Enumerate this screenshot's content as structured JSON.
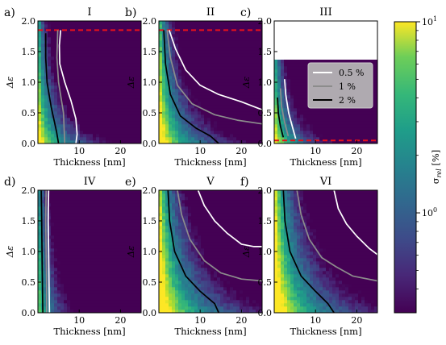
{
  "chart_data": [
    {
      "type": "heatmap",
      "panel_label": "a)",
      "title": "I",
      "xlabel": "Thickness [nm]",
      "ylabel": "Δε",
      "xlim": [
        0,
        25
      ],
      "ylim": [
        0,
        2.0
      ],
      "xticks": [
        10,
        20
      ],
      "yticks": [
        0.0,
        0.5,
        1.0,
        1.5,
        2.0
      ],
      "masked_above": null,
      "reference_lines": [
        {
          "style": "dashed",
          "color": "#e8101a",
          "y": 1.85
        }
      ],
      "field": {
        "a": 0.9,
        "slope": 0.55
      },
      "series": [
        {
          "name": "0.5 %",
          "color": "#ffffff",
          "points": [
            [
              5.5,
              1.85
            ],
            [
              5.2,
              1.6
            ],
            [
              5.3,
              1.3
            ],
            [
              6.5,
              1.0
            ],
            [
              8.0,
              0.7
            ],
            [
              9.2,
              0.4
            ],
            [
              9.5,
              0.15
            ],
            [
              9.2,
              0.0
            ]
          ]
        },
        {
          "name": "1 %",
          "color": "#8c8c8c",
          "points": [
            [
              4.8,
              1.85
            ],
            [
              4.6,
              1.4
            ],
            [
              5.0,
              1.0
            ],
            [
              6.2,
              0.5
            ],
            [
              6.5,
              0.0
            ]
          ]
        },
        {
          "name": "2 %",
          "color": "#000000",
          "points": [
            [
              1.9,
              1.8
            ],
            [
              1.9,
              1.4
            ],
            [
              2.2,
              1.0
            ],
            [
              3.2,
              0.6
            ],
            [
              4.5,
              0.2
            ],
            [
              5.0,
              0.0
            ]
          ]
        }
      ]
    },
    {
      "type": "heatmap",
      "panel_label": "b)",
      "title": "II",
      "xlabel": "Thickness [nm]",
      "ylabel": "Δε",
      "xlim": [
        0,
        25
      ],
      "ylim": [
        0,
        2.0
      ],
      "xticks": [
        10,
        20
      ],
      "yticks": [
        0.0,
        0.5,
        1.0,
        1.5,
        2.0
      ],
      "masked_above": null,
      "reference_lines": [
        {
          "style": "dashed",
          "color": "#e8101a",
          "y": 1.85
        }
      ],
      "field": {
        "a": 1.0,
        "slope": 0.45
      },
      "series": [
        {
          "name": "0.5 %",
          "color": "#ffffff",
          "points": [
            [
              2.5,
              1.85
            ],
            [
              4.0,
              1.55
            ],
            [
              6.5,
              1.2
            ],
            [
              10.0,
              0.95
            ],
            [
              14.5,
              0.8
            ],
            [
              20.0,
              0.68
            ],
            [
              25.0,
              0.55
            ]
          ]
        },
        {
          "name": "1 %",
          "color": "#8c8c8c",
          "points": [
            [
              2.0,
              1.85
            ],
            [
              2.8,
              1.4
            ],
            [
              4.5,
              0.95
            ],
            [
              8.0,
              0.65
            ],
            [
              13.5,
              0.47
            ],
            [
              19.0,
              0.38
            ],
            [
              25.0,
              0.32
            ]
          ]
        },
        {
          "name": "2 %",
          "color": "#000000",
          "points": [
            [
              1.2,
              1.85
            ],
            [
              1.6,
              1.3
            ],
            [
              2.8,
              0.8
            ],
            [
              5.2,
              0.45
            ],
            [
              9.0,
              0.25
            ],
            [
              12.5,
              0.12
            ],
            [
              14.5,
              0.0
            ]
          ]
        }
      ]
    },
    {
      "type": "heatmap",
      "panel_label": "c)",
      "title": "III",
      "xlabel": "Thickness [nm]",
      "ylabel": "Δε",
      "xlim": [
        0,
        25
      ],
      "ylim": [
        0,
        2.0
      ],
      "xticks": [
        10,
        20
      ],
      "yticks": [
        0.0,
        0.5,
        1.0,
        1.5,
        2.0
      ],
      "masked_above": 1.38,
      "reference_lines": [
        {
          "style": "dashed",
          "color": "#e8101a",
          "y": 0.05
        }
      ],
      "field": {
        "a": 0.8,
        "slope": 0.6
      },
      "legend": {
        "location": "upper-right",
        "entries": [
          "0.5 %",
          "1 %",
          "2 %"
        ]
      },
      "series": [
        {
          "name": "0.5 %",
          "color": "#ffffff",
          "points": [
            [
              2.5,
              1.05
            ],
            [
              2.8,
              0.8
            ],
            [
              3.5,
              0.5
            ],
            [
              4.5,
              0.25
            ],
            [
              5.2,
              0.08
            ]
          ]
        },
        {
          "name": "1 %",
          "color": "#8c8c8c",
          "points": [
            [
              1.5,
              0.9
            ],
            [
              1.8,
              0.6
            ],
            [
              2.5,
              0.35
            ],
            [
              3.4,
              0.12
            ]
          ]
        },
        {
          "name": "2 %",
          "color": "#000000",
          "points": [
            [
              0.8,
              0.75
            ],
            [
              1.0,
              0.5
            ],
            [
              1.5,
              0.28
            ],
            [
              2.2,
              0.1
            ]
          ]
        }
      ]
    },
    {
      "type": "heatmap",
      "panel_label": "d)",
      "title": "IV",
      "xlabel": "Thickness [nm]",
      "ylabel": "Δε",
      "xlim": [
        0,
        25
      ],
      "ylim": [
        0,
        2.0
      ],
      "xticks": [
        10,
        20
      ],
      "yticks": [
        0.0,
        0.5,
        1.0,
        1.5,
        2.0
      ],
      "masked_above": null,
      "reference_lines": [],
      "field": {
        "a": 0.5,
        "slope": 0.2
      },
      "series": [
        {
          "name": "0.5 %",
          "color": "#ffffff",
          "points": [
            [
              2.6,
              2.0
            ],
            [
              2.5,
              1.5
            ],
            [
              2.6,
              1.0
            ],
            [
              2.7,
              0.5
            ],
            [
              2.8,
              0.0
            ]
          ]
        },
        {
          "name": "1 %",
          "color": "#8c8c8c",
          "points": [
            [
              2.0,
              2.0
            ],
            [
              1.9,
              1.5
            ],
            [
              2.0,
              1.0
            ],
            [
              2.1,
              0.5
            ],
            [
              2.1,
              0.0
            ]
          ]
        },
        {
          "name": "2 %",
          "color": "#000000",
          "points": [
            [
              0.8,
              2.0
            ],
            [
              0.9,
              1.6
            ],
            [
              1.0,
              1.0
            ],
            [
              1.1,
              0.5
            ],
            [
              1.2,
              0.0
            ]
          ]
        }
      ]
    },
    {
      "type": "heatmap",
      "panel_label": "e)",
      "title": "V",
      "xlabel": "Thickness [nm]",
      "ylabel": "Δε",
      "xlim": [
        0,
        25
      ],
      "ylim": [
        0,
        2.0
      ],
      "xticks": [
        10,
        20
      ],
      "yticks": [
        0.0,
        0.5,
        1.0,
        1.5,
        2.0
      ],
      "masked_above": null,
      "reference_lines": [],
      "field": {
        "a": 1.15,
        "slope": 0.35
      },
      "series": [
        {
          "name": "0.5 %",
          "color": "#ffffff",
          "points": [
            [
              9.5,
              2.0
            ],
            [
              11.0,
              1.75
            ],
            [
              13.5,
              1.5
            ],
            [
              16.5,
              1.3
            ],
            [
              20.0,
              1.12
            ],
            [
              23.0,
              1.08
            ],
            [
              25.0,
              1.08
            ]
          ]
        },
        {
          "name": "1 %",
          "color": "#8c8c8c",
          "points": [
            [
              4.5,
              2.0
            ],
            [
              5.5,
              1.6
            ],
            [
              7.5,
              1.2
            ],
            [
              11.0,
              0.85
            ],
            [
              15.0,
              0.65
            ],
            [
              20.0,
              0.55
            ],
            [
              25.0,
              0.52
            ]
          ]
        },
        {
          "name": "2 %",
          "color": "#000000",
          "points": [
            [
              2.2,
              2.0
            ],
            [
              2.6,
              1.5
            ],
            [
              3.8,
              1.0
            ],
            [
              6.5,
              0.6
            ],
            [
              10.0,
              0.35
            ],
            [
              13.5,
              0.15
            ],
            [
              14.5,
              0.0
            ]
          ]
        }
      ]
    },
    {
      "type": "heatmap",
      "panel_label": "f)",
      "title": "VI",
      "xlabel": "Thickness [nm]",
      "ylabel": "Δε",
      "xlim": [
        0,
        25
      ],
      "ylim": [
        0,
        2.0
      ],
      "xticks": [
        10,
        20
      ],
      "yticks": [
        0.0,
        0.5,
        1.0,
        1.5,
        2.0
      ],
      "masked_above": null,
      "reference_lines": [],
      "field": {
        "a": 1.15,
        "slope": 0.32
      },
      "series": [
        {
          "name": "0.5 %",
          "color": "#ffffff",
          "points": [
            [
              14.5,
              2.0
            ],
            [
              15.5,
              1.7
            ],
            [
              17.5,
              1.45
            ],
            [
              20.0,
              1.25
            ],
            [
              23.0,
              1.05
            ],
            [
              25.0,
              0.95
            ]
          ]
        },
        {
          "name": "1 %",
          "color": "#8c8c8c",
          "points": [
            [
              5.5,
              2.0
            ],
            [
              6.5,
              1.6
            ],
            [
              8.5,
              1.2
            ],
            [
              11.5,
              0.9
            ],
            [
              15.0,
              0.75
            ],
            [
              19.0,
              0.6
            ],
            [
              25.0,
              0.52
            ]
          ]
        },
        {
          "name": "2 %",
          "color": "#000000",
          "points": [
            [
              2.2,
              2.0
            ],
            [
              2.6,
              1.5
            ],
            [
              3.8,
              1.0
            ],
            [
              6.5,
              0.6
            ],
            [
              10.0,
              0.35
            ],
            [
              13.0,
              0.15
            ],
            [
              14.5,
              0.0
            ]
          ]
        }
      ]
    }
  ],
  "colorbar": {
    "label_main": "σ",
    "label_sub": "rel",
    "label_unit": " [%]",
    "scale": "log",
    "range": [
      0.3,
      10
    ],
    "ticks": [
      {
        "value": 10,
        "base": "10",
        "exp": "1"
      },
      {
        "value": 1,
        "base": "10",
        "exp": "0"
      }
    ],
    "colormap": "viridis"
  }
}
